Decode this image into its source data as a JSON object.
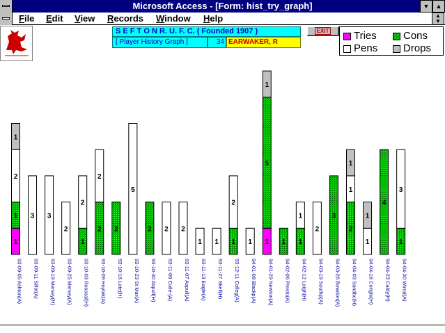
{
  "window": {
    "title": "Microsoft Access - [Form: hist_try_graph]"
  },
  "menu": {
    "items": [
      "File",
      "Edit",
      "View",
      "Records",
      "Window",
      "Help"
    ]
  },
  "header": {
    "club": "S E F T O N   R. U. F. C. ( Founded 1907 )",
    "subtitle": "[ Player History Graph ]",
    "player_number": "34",
    "player_name": "EARWAKER, R",
    "exit_label": "EXIT"
  },
  "legend": {
    "tries": "Tries",
    "cons": "Cons",
    "pens": "Pens",
    "drops": "Drops"
  },
  "colors": {
    "tries": "#ff00ff",
    "cons": "#00c000",
    "pens": "#ffffff",
    "drops": "#c0c0c0",
    "title_bar": "#000080",
    "header_cyan": "#00ffff",
    "name_yellow": "#ffff00"
  },
  "chart_data": {
    "type": "bar",
    "stacked": true,
    "categories": [
      "93-09-05 Ashton(A)",
      "93-09-11 Sillot(A)",
      "93-09-19 Mersey(H)",
      "93-09-25 Mersey(A)",
      "93-10-03 Rosssal(H)",
      "93-10-09 Hoylak(A)",
      "93-10-16 Lirte(H)",
      "93-10-23 St Mar(A)",
      "93-10-30 Aspull(H)",
      "93-11-06 Colle-(A)",
      "93-11-07 Aspull(A)",
      "93-11-13 Eagle(A)",
      "93-11-27 Skell(H)",
      "93-12-11 Colleg(A)",
      "94-01-08 Blackp(A)",
      "94-01-29 Newton(A)",
      "94-02-06 Presto(A)",
      "94-02-12 Leigh(H)",
      "94-03-19 Southp(A)",
      "94-03-26 Bowdon(A)",
      "94-04-03 Sandbc(H)",
      "94-04-16 Congle(H)",
      "94-04-23 Caldy(H)",
      "94-04-30 Wirral(A)"
    ],
    "series": [
      {
        "name": "Tries",
        "values": [
          1,
          0,
          0,
          0,
          0,
          0,
          0,
          0,
          0,
          0,
          0,
          0,
          0,
          0,
          0,
          1,
          0,
          0,
          0,
          0,
          0,
          0,
          0,
          0
        ]
      },
      {
        "name": "Cons",
        "values": [
          1,
          0,
          0,
          0,
          1,
          2,
          2,
          0,
          2,
          0,
          0,
          0,
          0,
          1,
          0,
          5,
          1,
          1,
          0,
          3,
          2,
          0,
          4,
          1
        ]
      },
      {
        "name": "Pens",
        "values": [
          2,
          3,
          3,
          2,
          2,
          2,
          0,
          5,
          0,
          2,
          2,
          1,
          1,
          2,
          1,
          0,
          0,
          1,
          2,
          0,
          1,
          1,
          0,
          3
        ]
      },
      {
        "name": "Drops",
        "values": [
          1,
          0,
          0,
          0,
          0,
          0,
          0,
          0,
          0,
          0,
          0,
          0,
          0,
          0,
          0,
          1,
          0,
          0,
          0,
          0,
          1,
          1,
          0,
          0
        ]
      }
    ],
    "ylim": [
      0,
      7
    ],
    "grid": false,
    "legend_position": "top-right"
  }
}
